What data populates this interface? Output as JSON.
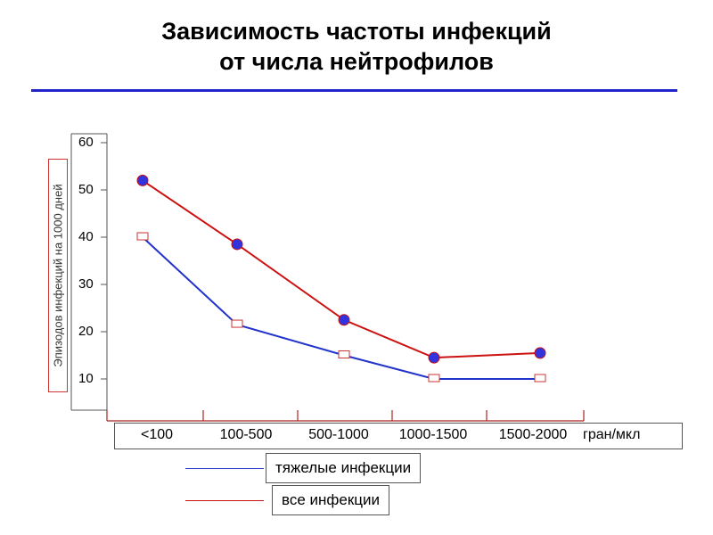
{
  "header": {
    "title_line1": "Зависимость частоты инфекций",
    "title_line2": "от числа нейтрофилов"
  },
  "colors": {
    "accent_rule": "#2222cc",
    "series_severe": "#2233cc",
    "series_all": "#cc1111",
    "marker_fill": "#3333dd"
  },
  "chart_data": {
    "type": "line",
    "title": "Зависимость частоты инфекций от числа нейтрофилов",
    "ylabel": "Эпизодов инфекций на 1000 дней",
    "xunit": "гран/мкл",
    "categories": [
      "<100",
      "100-500",
      "500-1000",
      "1000-1500",
      "1500-2000"
    ],
    "yticks": [
      60,
      50,
      40,
      30,
      20,
      10
    ],
    "ylim": [
      5,
      60
    ],
    "series": [
      {
        "name": "тяжелые инфекции",
        "values": [
          40,
          21.5,
          15,
          10,
          10
        ],
        "marker": "open-square"
      },
      {
        "name": "все инфекции",
        "values": [
          52,
          38.5,
          22.5,
          14.5,
          15.5
        ],
        "marker": "filled-circle"
      }
    ],
    "legend_position": "bottom"
  }
}
